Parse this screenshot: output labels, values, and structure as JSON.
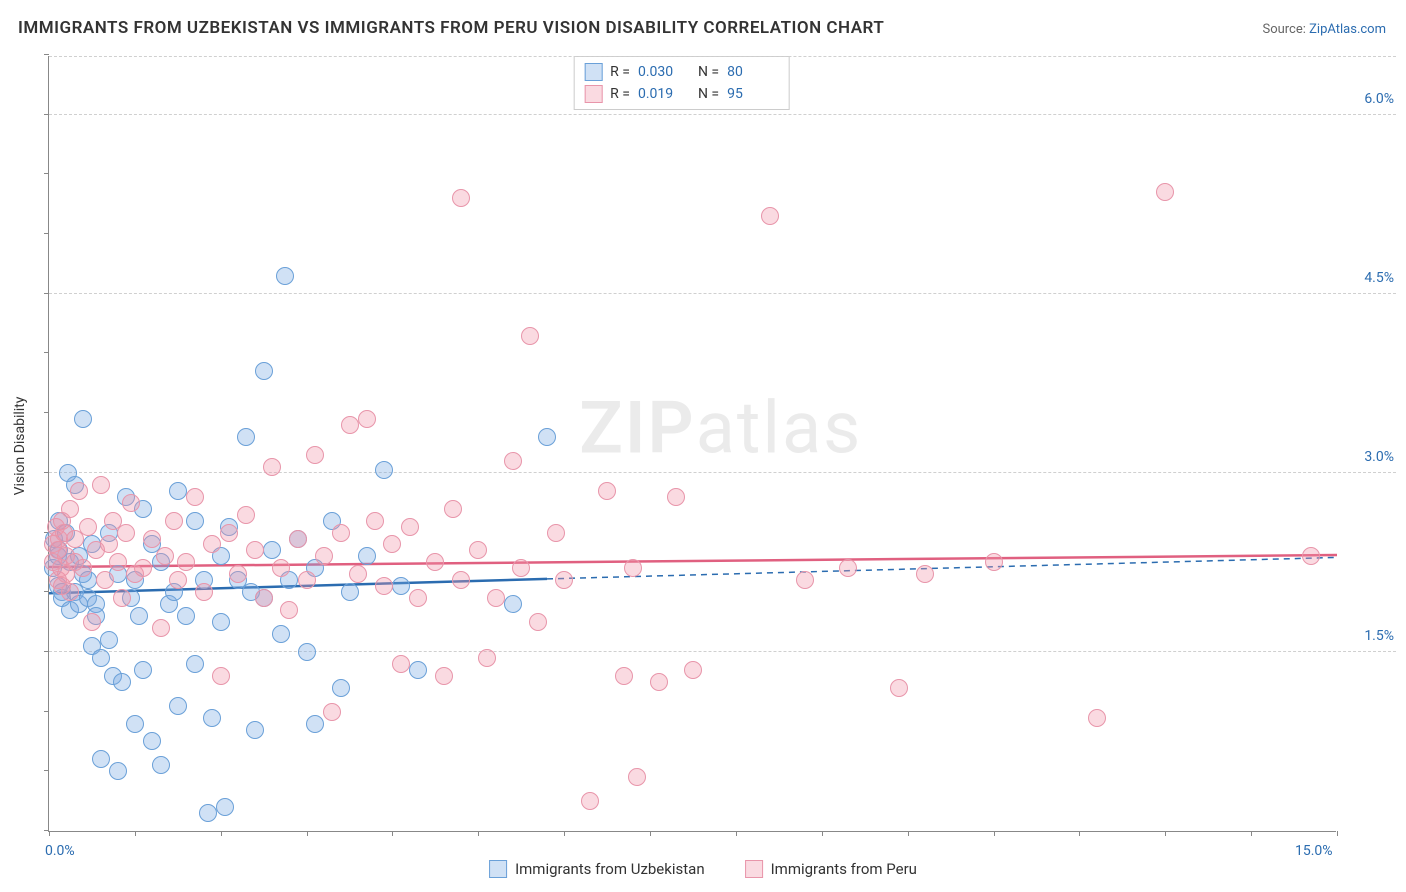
{
  "title": "IMMIGRANTS FROM UZBEKISTAN VS IMMIGRANTS FROM PERU VISION DISABILITY CORRELATION CHART",
  "source_prefix": "Source: ",
  "source_link": "ZipAtlas.com",
  "ylabel": "Vision Disability",
  "watermark_bold": "ZIP",
  "watermark_rest": "atlas",
  "chart": {
    "type": "scatter",
    "xlim": [
      0.0,
      15.0
    ],
    "ylim": [
      0.0,
      6.5
    ],
    "x_ticks_labeled": [
      {
        "v": 0.0,
        "label": "0.0%"
      },
      {
        "v": 15.0,
        "label": "15.0%"
      }
    ],
    "x_tick_marks": [
      0,
      1,
      2,
      3,
      4,
      5,
      6,
      7,
      8,
      9,
      10,
      11,
      12,
      13,
      14,
      15
    ],
    "y_gridlines": [
      {
        "v": 1.5,
        "label": "1.5%"
      },
      {
        "v": 3.0,
        "label": "3.0%"
      },
      {
        "v": 4.5,
        "label": "4.5%"
      },
      {
        "v": 6.0,
        "label": "6.0%"
      }
    ],
    "y_tick_marks": [
      0.0,
      0.5,
      1.0,
      1.5,
      2.0,
      2.5,
      3.0,
      3.5,
      4.0,
      4.5,
      5.0,
      5.5,
      6.0,
      6.5
    ],
    "background_color": "#ffffff",
    "grid_color": "#d0d0d0",
    "axis_color": "#888888",
    "point_radius": 9,
    "point_border_width": 1,
    "series": [
      {
        "id": "uzbekistan",
        "label": "Immigrants from Uzbekistan",
        "fill": "rgba(120,170,225,0.35)",
        "stroke": "#6aa0d8",
        "line_color": "#2b6cb0",
        "R": "0.030",
        "N": "80",
        "trend": {
          "x1": 0.0,
          "y1": 2.0,
          "x2": 5.8,
          "y2": 2.12,
          "ext_x2": 15.0,
          "ext_y2": 2.3
        },
        "points": [
          [
            0.05,
            2.2
          ],
          [
            0.06,
            2.45
          ],
          [
            0.1,
            2.3
          ],
          [
            0.1,
            2.05
          ],
          [
            0.12,
            2.6
          ],
          [
            0.12,
            2.35
          ],
          [
            0.15,
            2.0
          ],
          [
            0.15,
            1.95
          ],
          [
            0.2,
            2.5
          ],
          [
            0.22,
            3.0
          ],
          [
            0.25,
            1.85
          ],
          [
            0.25,
            2.25
          ],
          [
            0.3,
            2.0
          ],
          [
            0.3,
            2.9
          ],
          [
            0.35,
            1.9
          ],
          [
            0.35,
            2.3
          ],
          [
            0.4,
            2.15
          ],
          [
            0.4,
            3.45
          ],
          [
            0.45,
            1.95
          ],
          [
            0.45,
            2.1
          ],
          [
            0.5,
            1.55
          ],
          [
            0.5,
            2.4
          ],
          [
            0.55,
            1.9
          ],
          [
            0.55,
            1.8
          ],
          [
            0.6,
            1.45
          ],
          [
            0.6,
            0.6
          ],
          [
            0.7,
            1.6
          ],
          [
            0.7,
            2.5
          ],
          [
            0.75,
            1.3
          ],
          [
            0.8,
            0.5
          ],
          [
            0.8,
            2.15
          ],
          [
            0.85,
            1.25
          ],
          [
            0.9,
            2.8
          ],
          [
            0.95,
            1.95
          ],
          [
            1.0,
            0.9
          ],
          [
            1.0,
            2.1
          ],
          [
            1.05,
            1.8
          ],
          [
            1.1,
            2.7
          ],
          [
            1.1,
            1.35
          ],
          [
            1.2,
            0.75
          ],
          [
            1.2,
            2.4
          ],
          [
            1.3,
            2.25
          ],
          [
            1.3,
            0.55
          ],
          [
            1.4,
            1.9
          ],
          [
            1.45,
            2.0
          ],
          [
            1.5,
            1.05
          ],
          [
            1.5,
            2.85
          ],
          [
            1.6,
            1.8
          ],
          [
            1.7,
            2.6
          ],
          [
            1.7,
            1.4
          ],
          [
            1.8,
            2.1
          ],
          [
            1.85,
            0.15
          ],
          [
            1.9,
            0.95
          ],
          [
            2.0,
            1.75
          ],
          [
            2.0,
            2.3
          ],
          [
            2.05,
            0.2
          ],
          [
            2.1,
            2.55
          ],
          [
            2.2,
            2.1
          ],
          [
            2.3,
            3.3
          ],
          [
            2.35,
            2.0
          ],
          [
            2.4,
            0.85
          ],
          [
            2.5,
            3.85
          ],
          [
            2.5,
            1.95
          ],
          [
            2.6,
            2.35
          ],
          [
            2.7,
            1.65
          ],
          [
            2.75,
            4.65
          ],
          [
            2.8,
            2.1
          ],
          [
            2.9,
            2.45
          ],
          [
            3.0,
            1.5
          ],
          [
            3.1,
            0.9
          ],
          [
            3.1,
            2.2
          ],
          [
            3.3,
            2.6
          ],
          [
            3.4,
            1.2
          ],
          [
            3.5,
            2.0
          ],
          [
            3.7,
            2.3
          ],
          [
            3.9,
            3.02
          ],
          [
            4.1,
            2.05
          ],
          [
            4.3,
            1.35
          ],
          [
            5.4,
            1.9
          ],
          [
            5.8,
            3.3
          ]
        ]
      },
      {
        "id": "peru",
        "label": "Immigrants from Peru",
        "fill": "rgba(240,150,170,0.35)",
        "stroke": "#e895aa",
        "line_color": "#e06080",
        "R": "0.019",
        "N": "95",
        "trend": {
          "x1": 0.0,
          "y1": 2.22,
          "x2": 15.0,
          "y2": 2.32
        },
        "points": [
          [
            0.05,
            2.25
          ],
          [
            0.05,
            2.4
          ],
          [
            0.08,
            2.55
          ],
          [
            0.1,
            2.1
          ],
          [
            0.1,
            2.35
          ],
          [
            0.12,
            2.45
          ],
          [
            0.14,
            2.2
          ],
          [
            0.15,
            2.6
          ],
          [
            0.15,
            2.05
          ],
          [
            0.18,
            2.5
          ],
          [
            0.2,
            2.3
          ],
          [
            0.2,
            2.15
          ],
          [
            0.25,
            2.7
          ],
          [
            0.25,
            2.0
          ],
          [
            0.3,
            2.45
          ],
          [
            0.3,
            2.25
          ],
          [
            0.35,
            2.85
          ],
          [
            0.4,
            2.2
          ],
          [
            0.45,
            2.55
          ],
          [
            0.5,
            1.75
          ],
          [
            0.55,
            2.35
          ],
          [
            0.6,
            2.9
          ],
          [
            0.65,
            2.1
          ],
          [
            0.7,
            2.4
          ],
          [
            0.75,
            2.6
          ],
          [
            0.8,
            2.25
          ],
          [
            0.85,
            1.95
          ],
          [
            0.9,
            2.5
          ],
          [
            0.95,
            2.75
          ],
          [
            1.0,
            2.15
          ],
          [
            1.1,
            2.2
          ],
          [
            1.2,
            2.45
          ],
          [
            1.3,
            1.7
          ],
          [
            1.35,
            2.3
          ],
          [
            1.45,
            2.6
          ],
          [
            1.5,
            2.1
          ],
          [
            1.6,
            2.25
          ],
          [
            1.7,
            2.8
          ],
          [
            1.8,
            2.0
          ],
          [
            1.9,
            2.4
          ],
          [
            2.0,
            1.3
          ],
          [
            2.1,
            2.5
          ],
          [
            2.2,
            2.15
          ],
          [
            2.3,
            2.65
          ],
          [
            2.4,
            2.35
          ],
          [
            2.5,
            1.95
          ],
          [
            2.6,
            3.05
          ],
          [
            2.7,
            2.2
          ],
          [
            2.8,
            1.85
          ],
          [
            2.9,
            2.45
          ],
          [
            3.0,
            2.1
          ],
          [
            3.1,
            3.15
          ],
          [
            3.2,
            2.3
          ],
          [
            3.3,
            1.0
          ],
          [
            3.4,
            2.5
          ],
          [
            3.5,
            3.4
          ],
          [
            3.6,
            2.15
          ],
          [
            3.7,
            3.45
          ],
          [
            3.8,
            2.6
          ],
          [
            3.9,
            2.05
          ],
          [
            4.0,
            2.4
          ],
          [
            4.1,
            1.4
          ],
          [
            4.2,
            2.55
          ],
          [
            4.3,
            1.95
          ],
          [
            4.5,
            2.25
          ],
          [
            4.6,
            1.3
          ],
          [
            4.7,
            2.7
          ],
          [
            4.8,
            2.1
          ],
          [
            4.8,
            5.3
          ],
          [
            5.0,
            2.35
          ],
          [
            5.1,
            1.45
          ],
          [
            5.2,
            1.95
          ],
          [
            5.4,
            3.1
          ],
          [
            5.5,
            2.2
          ],
          [
            5.6,
            4.15
          ],
          [
            5.7,
            1.75
          ],
          [
            5.9,
            2.5
          ],
          [
            6.0,
            2.1
          ],
          [
            6.3,
            0.25
          ],
          [
            6.5,
            2.85
          ],
          [
            6.7,
            1.3
          ],
          [
            6.8,
            2.2
          ],
          [
            6.85,
            0.45
          ],
          [
            7.1,
            1.25
          ],
          [
            7.3,
            2.8
          ],
          [
            7.5,
            1.35
          ],
          [
            8.4,
            5.15
          ],
          [
            8.8,
            2.1
          ],
          [
            9.3,
            2.2
          ],
          [
            9.9,
            1.2
          ],
          [
            10.2,
            2.15
          ],
          [
            11.0,
            2.25
          ],
          [
            12.2,
            0.95
          ],
          [
            13.0,
            5.35
          ],
          [
            14.7,
            2.3
          ]
        ]
      }
    ]
  },
  "stats_labels": {
    "R": "R =",
    "N": "N ="
  }
}
